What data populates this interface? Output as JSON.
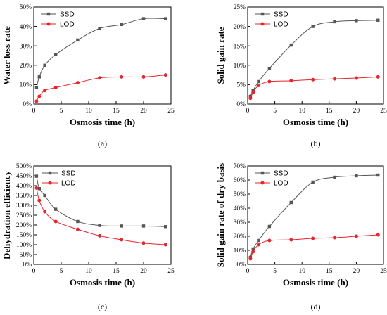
{
  "colors": {
    "ssd": "#555555",
    "lod": "#e8252c",
    "axis": "#000000"
  },
  "chart_data": [
    {
      "id": "a",
      "type": "line",
      "panel_label": "(a)",
      "xlabel": "Osmosis time (h)",
      "ylabel": "Water loss rate",
      "xlim": [
        0,
        25
      ],
      "ylim": [
        0,
        50
      ],
      "xticks": [
        0,
        5,
        10,
        15,
        20,
        25
      ],
      "yticks": [
        0,
        10,
        20,
        30,
        40,
        50
      ],
      "ytick_suffix": "%",
      "legend_position": "top-left",
      "series": [
        {
          "name": "SSD",
          "x": [
            0.5,
            1,
            2,
            4,
            8,
            12,
            16,
            20,
            24
          ],
          "values": [
            8.5,
            14,
            20,
            25.5,
            33,
            39,
            41,
            44,
            44
          ]
        },
        {
          "name": "LOD",
          "x": [
            0.5,
            1,
            2,
            4,
            8,
            12,
            16,
            20,
            24
          ],
          "values": [
            1.5,
            4,
            7,
            8.5,
            11,
            13.5,
            14,
            14,
            15
          ]
        }
      ]
    },
    {
      "id": "b",
      "type": "line",
      "panel_label": "(b)",
      "xlabel": "Osmosis time (h)",
      "ylabel": "Solid gain rate",
      "xlim": [
        0,
        25
      ],
      "ylim": [
        0,
        25
      ],
      "xticks": [
        0,
        5,
        10,
        15,
        20,
        25
      ],
      "yticks": [
        0,
        5,
        10,
        15,
        20,
        25
      ],
      "ytick_suffix": "%",
      "legend_position": "top-left",
      "series": [
        {
          "name": "SSD",
          "x": [
            0.5,
            1,
            2,
            4,
            8,
            12,
            16,
            20,
            24
          ],
          "values": [
            2,
            3.5,
            5.8,
            9.2,
            15.2,
            20,
            21.2,
            21.5,
            21.6
          ]
        },
        {
          "name": "LOD",
          "x": [
            0.5,
            1,
            2,
            4,
            8,
            12,
            16,
            20,
            24
          ],
          "values": [
            1.5,
            3,
            4.8,
            5.8,
            6,
            6.3,
            6.5,
            6.7,
            7
          ]
        }
      ]
    },
    {
      "id": "c",
      "type": "line",
      "panel_label": "(c)",
      "xlabel": "Osmosis time (h)",
      "ylabel": "Dehydration efficiency",
      "xlim": [
        0,
        25
      ],
      "ylim": [
        0,
        500
      ],
      "xticks": [
        0,
        5,
        10,
        15,
        20,
        25
      ],
      "yticks": [
        0,
        50,
        100,
        150,
        200,
        250,
        300,
        350,
        400,
        450,
        500
      ],
      "ytick_suffix": "%",
      "legend_position": "top-right",
      "series": [
        {
          "name": "SSD",
          "x": [
            0.5,
            1,
            2,
            4,
            8,
            12,
            16,
            20,
            24
          ],
          "values": [
            448,
            385,
            350,
            280,
            218,
            198,
            195,
            195,
            192
          ]
        },
        {
          "name": "LOD",
          "x": [
            0.5,
            1,
            2,
            4,
            8,
            12,
            16,
            20,
            24
          ],
          "values": [
            388,
            325,
            268,
            218,
            178,
            145,
            125,
            108,
            100
          ]
        }
      ]
    },
    {
      "id": "d",
      "type": "line",
      "panel_label": "(d)",
      "xlabel": "Osmosis time (h)",
      "ylabel": "Solid gain rate of dry basis",
      "xlim": [
        0,
        25
      ],
      "ylim": [
        0,
        70
      ],
      "xticks": [
        0,
        5,
        10,
        15,
        20,
        25
      ],
      "yticks": [
        0,
        10,
        20,
        30,
        40,
        50,
        60,
        70
      ],
      "ytick_suffix": "%",
      "legend_position": "top-left",
      "series": [
        {
          "name": "SSD",
          "x": [
            0.5,
            1,
            2,
            4,
            8,
            12,
            16,
            20,
            24
          ],
          "values": [
            5,
            11,
            17,
            27,
            44,
            58.5,
            62,
            63,
            63.5
          ]
        },
        {
          "name": "LOD",
          "x": [
            0.5,
            1,
            2,
            4,
            8,
            12,
            16,
            20,
            24
          ],
          "values": [
            4,
            9,
            14,
            17,
            17.5,
            18.5,
            19,
            20,
            21
          ]
        }
      ]
    }
  ]
}
